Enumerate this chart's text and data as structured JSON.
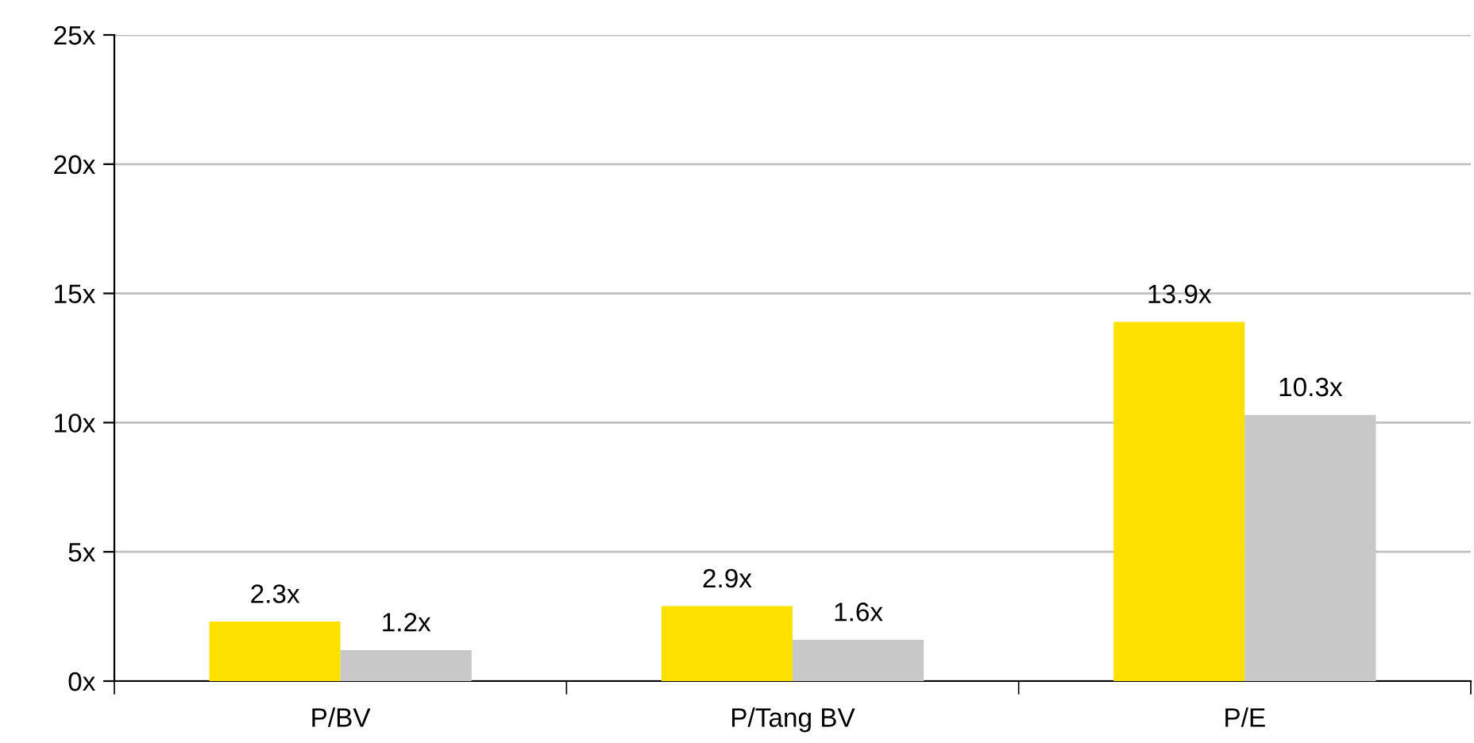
{
  "chart_data": {
    "type": "bar",
    "categories": [
      "P/BV",
      "P/Tang BV",
      "P/E"
    ],
    "series": [
      {
        "color": "#ffe100",
        "values": [
          2.3,
          2.9,
          13.9
        ],
        "value_labels": [
          "2.3x",
          "2.9x",
          "13.9x"
        ]
      },
      {
        "color": "#c8c8c8",
        "values": [
          1.2,
          1.6,
          10.3
        ],
        "value_labels": [
          "1.2x",
          "1.6x",
          "10.3x"
        ]
      }
    ],
    "ylim": [
      0,
      25
    ],
    "yticks": [
      {
        "value": 0,
        "label": "0x"
      },
      {
        "value": 5,
        "label": "5x"
      },
      {
        "value": 10,
        "label": "10x"
      },
      {
        "value": 15,
        "label": "15x"
      },
      {
        "value": 20,
        "label": "20x"
      },
      {
        "value": 25,
        "label": "25x"
      }
    ],
    "grid": "y",
    "legend": false
  }
}
